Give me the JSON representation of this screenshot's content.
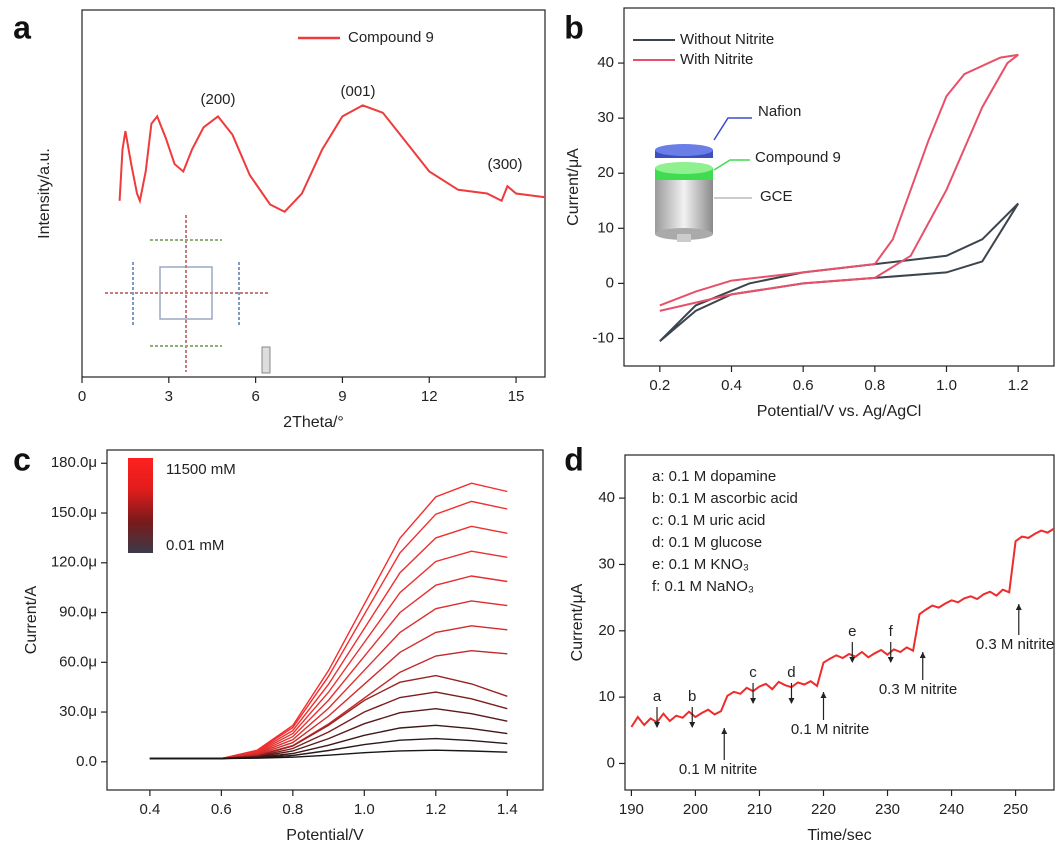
{
  "chart_data": [
    {
      "type": "line",
      "panel_label": "a",
      "xlabel": "2Theta/°",
      "ylabel": "Intensity/a.u.",
      "x": [
        1.3,
        1.4,
        1.5,
        1.7,
        1.9,
        2.0,
        2.2,
        2.4,
        2.6,
        2.9,
        3.2,
        3.5,
        3.8,
        4.2,
        4.7,
        5.2,
        5.8,
        6.5,
        7.0,
        7.6,
        8.3,
        9.0,
        9.7,
        10.4,
        11.0,
        12.0,
        13.0,
        14.0,
        14.5,
        14.7,
        15.0,
        16.0
      ],
      "series": [
        {
          "name": "Compound 9",
          "color": "#ef3b3b",
          "values": [
            48,
            62,
            67,
            58,
            50,
            48,
            56,
            69,
            71,
            65,
            58,
            56,
            62,
            68,
            71,
            66,
            55,
            47,
            45,
            50,
            62,
            71,
            74,
            72,
            66,
            56,
            51,
            50,
            48,
            52,
            50,
            49
          ]
        }
      ],
      "xlim": [
        0,
        16
      ],
      "ylim": [
        0,
        100
      ],
      "xticks": [
        0,
        3,
        6,
        9,
        12,
        15
      ],
      "annotations": [
        "(200)",
        "(001)",
        "(300)"
      ]
    },
    {
      "type": "line",
      "panel_label": "b",
      "xlabel": "Potential/V vs. Ag/AgCl",
      "ylabel": "Current/μA",
      "series": [
        {
          "name": "Without Nitrite",
          "color": "#3c454e",
          "x": [
            0.2,
            0.3,
            0.45,
            0.6,
            0.8,
            1.0,
            1.1,
            1.2,
            1.1,
            1.0,
            0.8,
            0.6,
            0.4,
            0.3,
            0.2
          ],
          "values": [
            -10.5,
            -4,
            0,
            2,
            3.5,
            5,
            8,
            14.5,
            4,
            2,
            1,
            0,
            -2,
            -5,
            -10.5
          ]
        },
        {
          "name": "With Nitrite",
          "color": "#e8506a",
          "x": [
            0.2,
            0.4,
            0.6,
            0.8,
            0.9,
            1.0,
            1.1,
            1.17,
            1.2,
            1.15,
            1.05,
            1.0,
            0.95,
            0.9,
            0.85,
            0.8,
            0.6,
            0.4,
            0.3,
            0.2
          ],
          "values": [
            -5,
            -2,
            0,
            1,
            5,
            17,
            32,
            40,
            41.5,
            41,
            38,
            34,
            26,
            17,
            8,
            3.5,
            2,
            0.5,
            -1.5,
            -4
          ]
        }
      ],
      "xlim": [
        0.1,
        1.3
      ],
      "ylim": [
        -15,
        50
      ],
      "xticks": [
        0.2,
        0.4,
        0.6,
        0.8,
        {
          "value": 1,
          "label": "1.0"
        },
        1.2
      ],
      "yticks": [
        -10,
        0,
        10,
        20,
        30,
        40
      ],
      "annotations": [
        "Nafion",
        "Compound 9",
        "GCE"
      ]
    },
    {
      "type": "line",
      "panel_label": "c",
      "xlabel": "Potential/V",
      "ylabel": "Current/A",
      "x": [
        0.4,
        0.5,
        0.6,
        0.7,
        0.8,
        0.9,
        1.0,
        1.1,
        1.2,
        1.3,
        1.4
      ],
      "series": [
        {
          "color": "#f42c2c",
          "values": [
            2e-06,
            2e-06,
            2e-06,
            7e-06,
            2.19e-05,
            5.51e-05,
            9.5e-05,
            0.0001348,
            0.0001597,
            0.000168,
            0.000163
          ]
        },
        {
          "color": "#f22e2e",
          "values": [
            2e-06,
            2e-06,
            2e-06,
            6.7e-06,
            2.06e-05,
            5.16e-05,
            8.88e-05,
            0.000126,
            0.0001493,
            0.000157,
            0.0001524
          ]
        },
        {
          "color": "#ee2f2f",
          "values": [
            2e-06,
            2e-06,
            2e-06,
            6.2e-06,
            1.88e-05,
            4.68e-05,
            8.04e-05,
            0.000114,
            0.000135,
            0.000142,
            0.0001378
          ]
        },
        {
          "color": "#ea3030",
          "values": [
            2e-06,
            2e-06,
            2e-06,
            5.8e-06,
            1.7e-05,
            4.2e-05,
            7.2e-05,
            0.000102,
            0.0001208,
            0.000127,
            0.0001233
          ]
        },
        {
          "color": "#e43030",
          "values": [
            2e-06,
            2e-06,
            2e-06,
            5.3e-06,
            1.52e-05,
            3.72e-05,
            6.36e-05,
            9e-05,
            0.0001065,
            0.000112,
            0.0001087
          ]
        },
        {
          "color": "#dc2e2e",
          "values": [
            2e-06,
            2e-06,
            2e-06,
            4.9e-06,
            1.34e-05,
            3.24e-05,
            5.52e-05,
            7.8e-05,
            9.23e-05,
            9.7e-05,
            9.42e-05
          ]
        },
        {
          "color": "#d22c2c",
          "values": [
            2e-06,
            2e-06,
            2e-06,
            4.4e-06,
            1.16e-05,
            2.76e-05,
            4.68e-05,
            6.6e-05,
            7.8e-05,
            8.2e-05,
            7.96e-05
          ]
        },
        {
          "color": "#c42828",
          "values": [
            2e-06,
            2e-06,
            2e-06,
            4e-06,
            9.8e-06,
            2.28e-05,
            3.84e-05,
            5.4e-05,
            6.38e-05,
            6.7e-05,
            6.51e-05
          ]
        },
        {
          "color": "#9a2222",
          "values": [
            2e-06,
            2e-06,
            2e-06,
            3.5e-06,
            9.5e-06,
            2.2e-05,
            3.7e-05,
            4.8e-05,
            5.2e-05,
            4.7e-05,
            3.95e-05
          ]
        },
        {
          "color": "#7a1e1e",
          "values": [
            2e-06,
            2e-06,
            2e-06,
            3.2e-06,
            8e-06,
            1.8e-05,
            3e-05,
            3.88e-05,
            4.2e-05,
            3.8e-05,
            3.2e-05
          ]
        },
        {
          "color": "#5a1a1a",
          "values": [
            2e-06,
            2e-06,
            2e-06,
            2.9e-06,
            6.5e-06,
            1.4e-05,
            2.3e-05,
            2.96e-05,
            3.2e-05,
            2.9e-05,
            2.45e-05
          ]
        },
        {
          "color": "#3e1818",
          "values": [
            2e-06,
            2e-06,
            2e-06,
            2.6e-06,
            5e-06,
            1e-05,
            1.6e-05,
            2.04e-05,
            2.2e-05,
            2e-05,
            1.7e-05
          ]
        },
        {
          "color": "#2a1a1a",
          "values": [
            2e-06,
            2e-06,
            2e-06,
            2.4e-06,
            3.8e-06,
            6.8e-06,
            1.04e-05,
            1.3e-05,
            1.4e-05,
            1.28e-05,
            1.1e-05
          ]
        },
        {
          "color": "#161616",
          "values": [
            2e-06,
            2e-06,
            2e-06,
            2.2e-06,
            2.8e-06,
            4e-06,
            5.5e-06,
            6.6e-06,
            7e-06,
            6.5e-06,
            5.8e-06
          ]
        }
      ],
      "xlim": [
        0.28,
        1.5
      ],
      "ylim": [
        -1.7e-05,
        0.000188
      ],
      "xticks": [
        0.4,
        0.6,
        0.8,
        {
          "value": 1,
          "label": "1.0"
        },
        1.2,
        1.4
      ],
      "yticks": [
        {
          "value": 0,
          "label": "0.0"
        },
        {
          "value": 3e-05,
          "label": "30.0μ"
        },
        {
          "value": 6e-05,
          "label": "60.0μ"
        },
        {
          "value": 9e-05,
          "label": "90.0μ"
        },
        {
          "value": 0.00012,
          "label": "120.0μ"
        },
        {
          "value": 0.00015,
          "label": "150.0μ"
        },
        {
          "value": 0.00018,
          "label": "180.0μ"
        }
      ],
      "colorbar": {
        "labels": [
          "11500 mM",
          "0.01 mM"
        ],
        "colors": [
          "#ff2020",
          "#e01c1c",
          "#7a1a1a",
          "#3a3a48"
        ]
      }
    },
    {
      "type": "line",
      "panel_label": "d",
      "xlabel": "Time/sec",
      "ylabel": "Current/μA",
      "x": [
        190,
        191,
        192,
        193,
        194,
        195,
        196,
        197,
        198,
        199,
        200,
        201,
        202,
        203,
        204,
        205,
        206,
        207,
        208,
        209,
        210,
        211,
        212,
        213,
        214,
        215,
        216,
        217,
        218,
        219,
        220,
        221,
        222,
        223,
        224,
        225,
        226,
        227,
        228,
        229,
        230,
        231,
        232,
        233,
        234,
        235,
        236,
        237,
        238,
        239,
        240,
        241,
        242,
        243,
        244,
        245,
        246,
        247,
        248,
        249,
        250,
        251,
        252,
        253,
        254,
        255,
        256
      ],
      "series": [
        {
          "color": "#ef2b2b",
          "values": [
            5.5,
            7,
            5.8,
            6.8,
            6.2,
            7.5,
            6.4,
            7.2,
            6.9,
            7.8,
            7.0,
            7.6,
            8.1,
            7.4,
            7.9,
            10.2,
            10.8,
            10.5,
            11.4,
            10.9,
            11.6,
            12.0,
            11.2,
            12.3,
            11.8,
            11.5,
            12.2,
            11.9,
            12.4,
            11.7,
            15.2,
            15.8,
            16.3,
            15.9,
            16.5,
            16.1,
            16.8,
            16.0,
            16.6,
            17.1,
            16.4,
            17.2,
            16.8,
            17.5,
            17.0,
            22.5,
            23.2,
            23.8,
            23.5,
            24.1,
            24.6,
            24.3,
            24.9,
            25.2,
            24.8,
            25.5,
            25.9,
            25.3,
            26.2,
            25.8,
            33.5,
            34.2,
            34.0,
            34.6,
            35.1,
            34.8,
            35.4
          ]
        }
      ],
      "xlim": [
        189,
        256
      ],
      "ylim": [
        -4,
        46.5
      ],
      "xticks": [
        190,
        200,
        210,
        220,
        230,
        240,
        250
      ],
      "yticks": [
        0,
        10,
        20,
        30,
        40
      ],
      "notes": [
        "a: 0.1 M dopamine",
        "b: 0.1 M ascorbic acid",
        "c: 0.1 M uric acid",
        "d: 0.1 M glucose",
        "e: 0.1 M KNO₃",
        "f: 0.1 M NaNO₃"
      ],
      "event_labels": [
        "a",
        "b",
        "c",
        "d",
        "e",
        "f"
      ],
      "nitrite_labels": [
        "0.1 M nitrite",
        "0.1 M nitrite",
        "0.3 M nitrite",
        "0.3 M nitrite"
      ]
    }
  ]
}
